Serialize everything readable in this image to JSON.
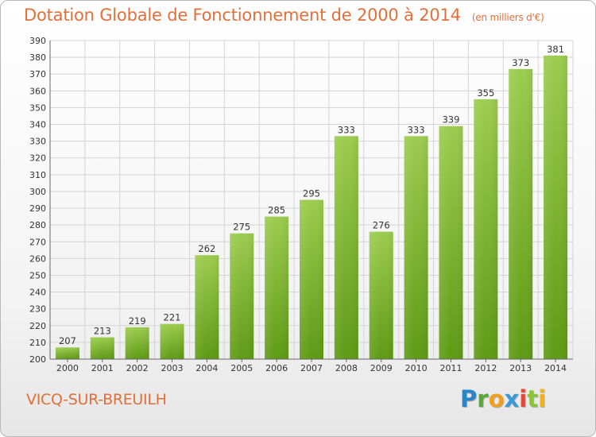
{
  "header": {
    "title": "Dotation Globale de Fonctionnement de 2000 à 2014",
    "unit": "(en milliers d'€)"
  },
  "footer": {
    "town": "VICQ-SUR-BREUILH",
    "logo": "Proxiti"
  },
  "colors": {
    "accent": "#e0703a",
    "bar_top": "#9ccc4e",
    "bar_bottom": "#5e9a14",
    "grid": "#d4d4d4"
  },
  "chart_data": {
    "type": "bar",
    "categories": [
      "2000",
      "2001",
      "2002",
      "2003",
      "2004",
      "2005",
      "2006",
      "2007",
      "2008",
      "2009",
      "2010",
      "2011",
      "2012",
      "2013",
      "2014"
    ],
    "values": [
      207,
      213,
      219,
      221,
      262,
      275,
      285,
      295,
      333,
      276,
      333,
      339,
      355,
      373,
      381
    ],
    "title": "Dotation Globale de Fonctionnement de 2000 à 2014",
    "subtitle": "(en milliers d'€)",
    "xlabel": "",
    "ylabel": "",
    "ylim": [
      200,
      390
    ],
    "ytick_step": 10,
    "grid": true,
    "data_labels": true
  }
}
